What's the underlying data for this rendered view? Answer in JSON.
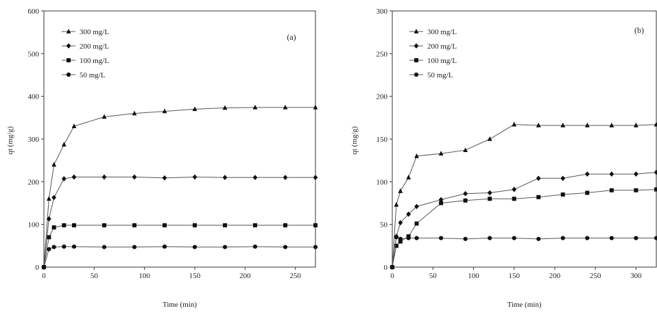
{
  "chart_data": [
    {
      "type": "line",
      "panel_label": "(a)",
      "xlabel": "Time (min)",
      "ylabel": "qt (mg/g)",
      "xlim": [
        0,
        270
      ],
      "ylim": [
        0,
        600
      ],
      "xticks": [
        0,
        50,
        100,
        150,
        200,
        250
      ],
      "yticks": [
        0,
        100,
        200,
        300,
        400,
        500,
        600
      ],
      "legend_position": "top-left",
      "series": [
        {
          "name": "300 mg/L",
          "marker": "triangle",
          "x": [
            0,
            5,
            10,
            20,
            30,
            60,
            90,
            120,
            150,
            180,
            210,
            240,
            270
          ],
          "y": [
            0,
            160,
            240,
            287,
            330,
            352,
            360,
            365,
            370,
            373,
            374,
            374,
            374
          ]
        },
        {
          "name": "200 mg/L",
          "marker": "diamond",
          "x": [
            0,
            5,
            10,
            20,
            30,
            60,
            90,
            120,
            150,
            180,
            210,
            240,
            270
          ],
          "y": [
            0,
            113,
            163,
            207,
            211,
            211,
            211,
            209,
            211,
            210,
            210,
            210,
            210
          ]
        },
        {
          "name": "100 mg/L",
          "marker": "square",
          "x": [
            0,
            5,
            10,
            20,
            30,
            60,
            90,
            120,
            150,
            180,
            210,
            240,
            270
          ],
          "y": [
            0,
            70,
            93,
            98,
            98,
            98,
            98,
            98,
            98,
            98,
            98,
            98,
            98
          ]
        },
        {
          "name": "50 mg/L",
          "marker": "circle",
          "x": [
            0,
            5,
            10,
            20,
            30,
            60,
            90,
            120,
            150,
            180,
            210,
            240,
            270
          ],
          "y": [
            0,
            42,
            47,
            48,
            48,
            47,
            47,
            48,
            47,
            47,
            48,
            47,
            47
          ]
        }
      ]
    },
    {
      "type": "line",
      "panel_label": "(b)",
      "xlabel": "Time (min)",
      "ylabel": "qt (mg/g)",
      "xlim": [
        0,
        325
      ],
      "ylim": [
        0,
        300
      ],
      "xticks": [
        0,
        50,
        100,
        150,
        200,
        250,
        300
      ],
      "yticks": [
        0,
        50,
        100,
        150,
        200,
        250,
        300
      ],
      "legend_position": "top-left",
      "series": [
        {
          "name": "300 mg/L",
          "marker": "triangle",
          "x": [
            0,
            5,
            10,
            20,
            30,
            60,
            90,
            120,
            150,
            180,
            210,
            240,
            270,
            300,
            325
          ],
          "y": [
            0,
            73,
            89,
            105,
            130,
            133,
            137,
            150,
            167,
            166,
            166,
            166,
            166,
            166,
            167
          ]
        },
        {
          "name": "200 mg/L",
          "marker": "diamond",
          "x": [
            0,
            5,
            10,
            20,
            30,
            60,
            90,
            120,
            150,
            180,
            210,
            240,
            270,
            300,
            325
          ],
          "y": [
            0,
            36,
            52,
            62,
            71,
            79,
            86,
            87,
            91,
            104,
            104,
            109,
            109,
            109,
            111
          ]
        },
        {
          "name": "100 mg/L",
          "marker": "square",
          "x": [
            0,
            5,
            10,
            20,
            30,
            60,
            90,
            120,
            150,
            180,
            210,
            240,
            270,
            300,
            325
          ],
          "y": [
            0,
            25,
            30,
            36,
            51,
            75,
            78,
            80,
            80,
            82,
            85,
            87,
            90,
            90,
            91
          ]
        },
        {
          "name": "50 mg/L",
          "marker": "circle",
          "x": [
            0,
            5,
            10,
            20,
            30,
            60,
            90,
            120,
            150,
            180,
            210,
            240,
            270,
            300,
            325
          ],
          "y": [
            0,
            35,
            33,
            34,
            34,
            34,
            33,
            34,
            34,
            33,
            34,
            34,
            34,
            34,
            34
          ]
        }
      ]
    }
  ]
}
